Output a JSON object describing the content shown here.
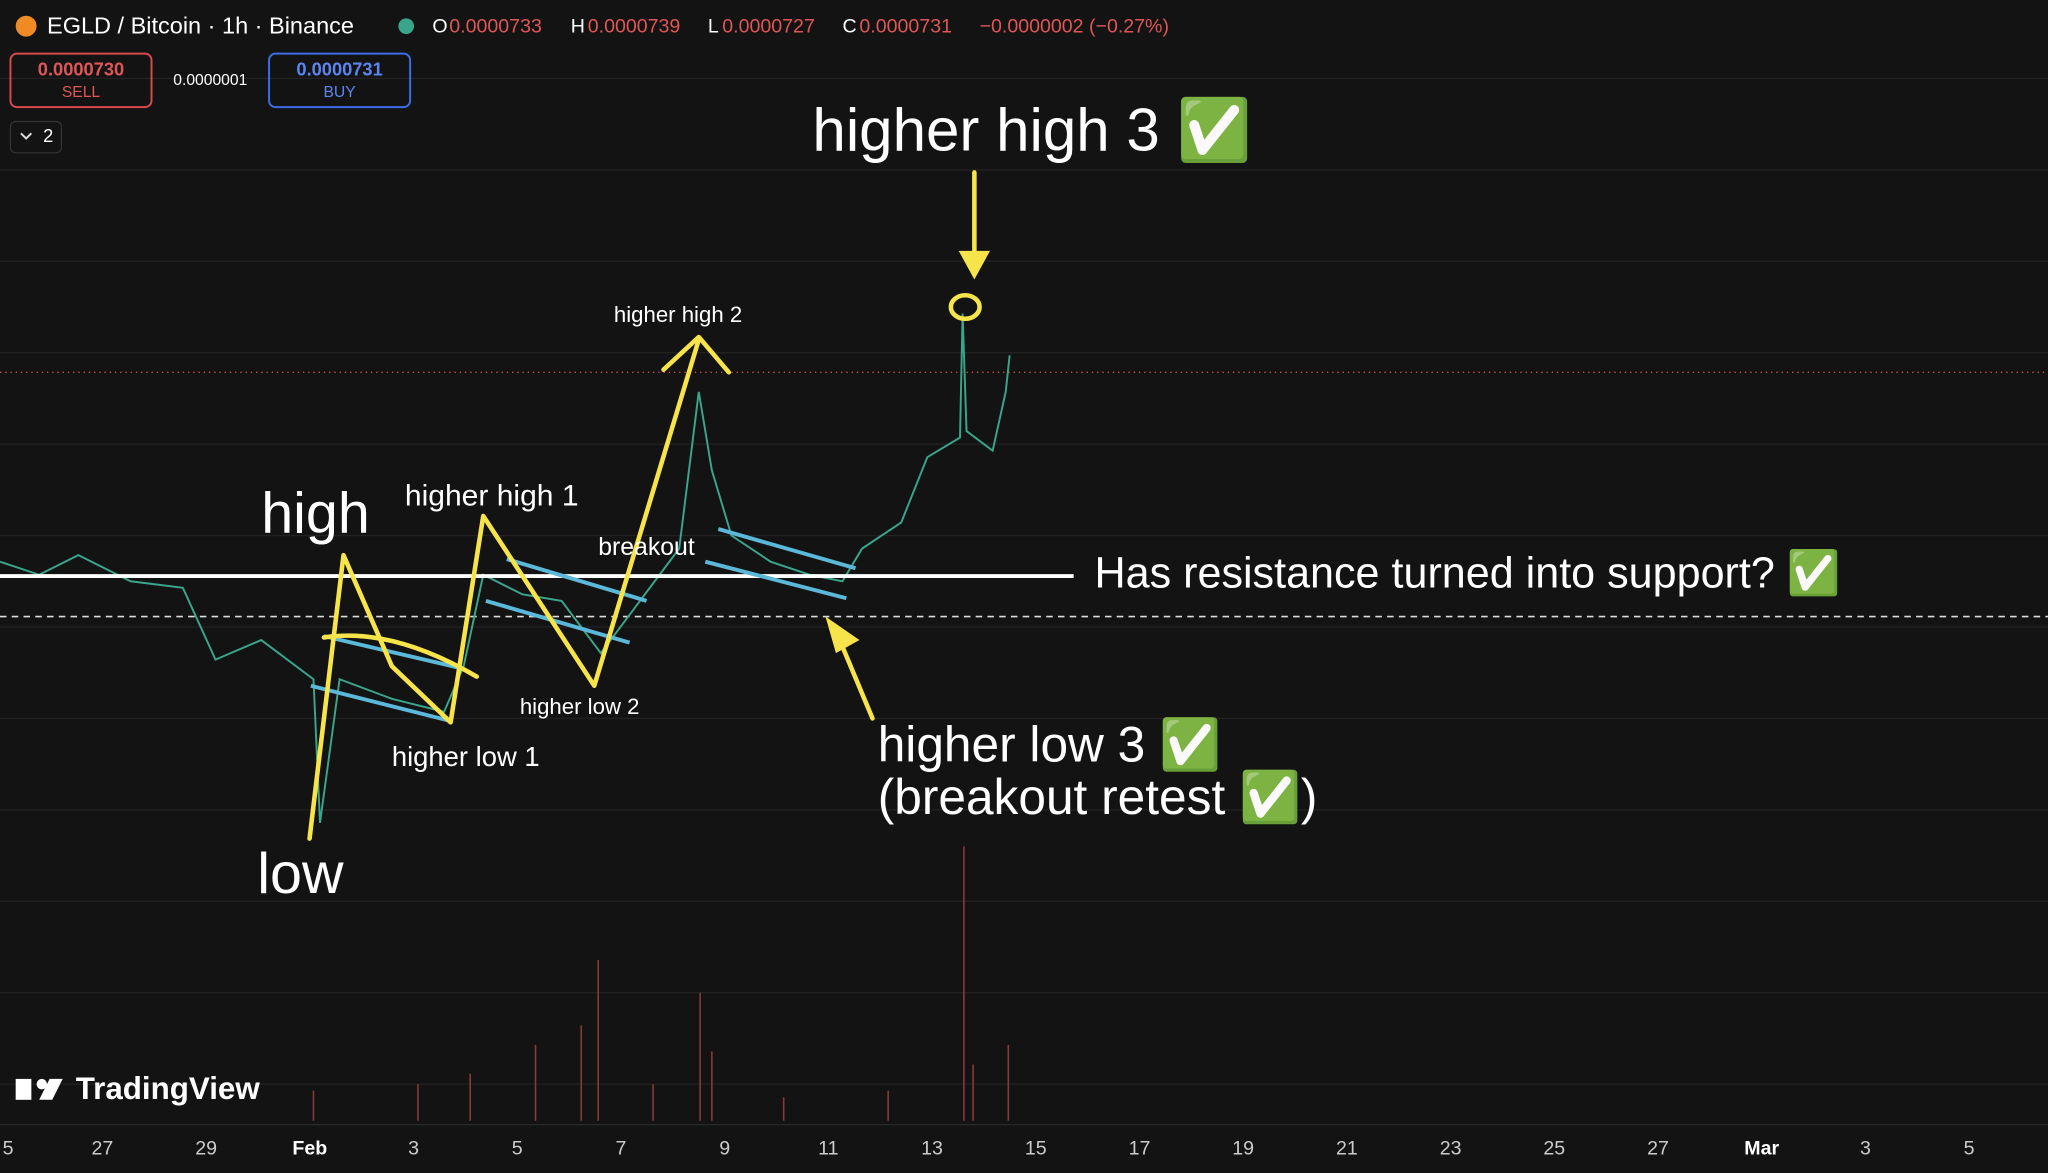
{
  "header": {
    "symbol": "EGLD / Bitcoin · 1h · Binance",
    "open_label": "O",
    "open": "0.0000733",
    "high_label": "H",
    "high": "0.0000739",
    "low_label": "L",
    "low": "0.0000727",
    "close_label": "C",
    "close": "0.0000731",
    "change": "−0.0000002 (−0.27%)"
  },
  "trade": {
    "sell_price": "0.0000730",
    "sell": "SELL",
    "spread": "0.0000001",
    "buy_price": "0.0000731",
    "buy": "BUY",
    "indicators": "2"
  },
  "annotations": {
    "hh3": "higher high 3 ✅",
    "hh2": "higher high 2",
    "high": "high",
    "hh1": "higher high 1",
    "breakout": "breakout",
    "resistance": "Has resistance turned into support? ✅",
    "hl2": "higher low 2",
    "hl1": "higher low 1",
    "hl3": "higher low 3 ✅",
    "retest": "(breakout retest ✅)",
    "low": "low"
  },
  "logo": "TradingView",
  "x_axis": [
    "5",
    "27",
    "29",
    "Feb",
    "3",
    "5",
    "7",
    "9",
    "11",
    "13",
    "15",
    "17",
    "19",
    "21",
    "23",
    "25",
    "27",
    "Mar",
    "3",
    "5"
  ]
}
